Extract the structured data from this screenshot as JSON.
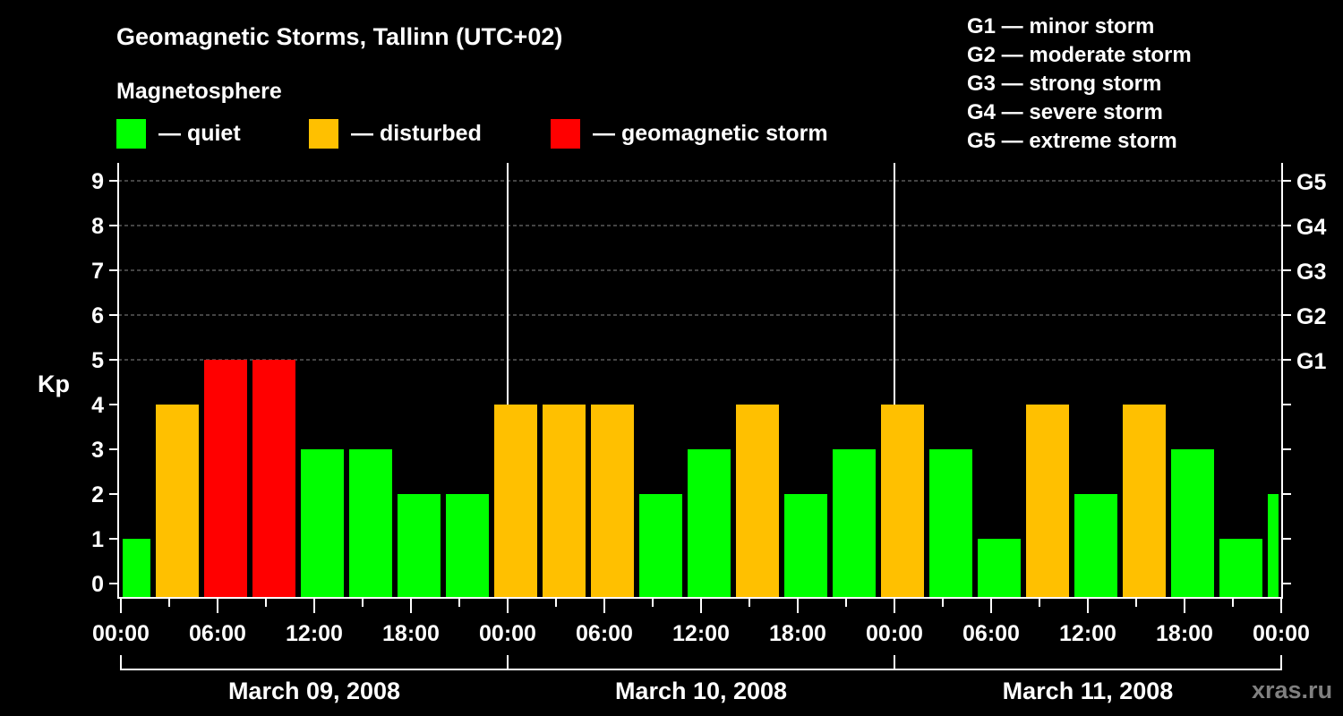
{
  "chart_data": {
    "type": "bar",
    "title": "Geomagnetic Storms, Tallinn (UTC+02)",
    "legend_title": "Magnetosphere",
    "legend": [
      {
        "label": "— quiet",
        "color": "#00ff00"
      },
      {
        "label": "— disturbed",
        "color": "#ffc000"
      },
      {
        "label": "— geomagnetic storm",
        "color": "#ff0000"
      }
    ],
    "storm_scale": [
      "G1 — minor storm",
      "G2 — moderate storm",
      "G3 — strong storm",
      "G4 — severe storm",
      "G5 — extreme storm"
    ],
    "ylabel": "Kp",
    "ylim": [
      0,
      9
    ],
    "yticks": [
      "0",
      "1",
      "2",
      "3",
      "4",
      "5",
      "6",
      "7",
      "8",
      "9"
    ],
    "right_ticks": [
      {
        "kp": 5,
        "label": "G1"
      },
      {
        "kp": 6,
        "label": "G2"
      },
      {
        "kp": 7,
        "label": "G3"
      },
      {
        "kp": 8,
        "label": "G4"
      },
      {
        "kp": 9,
        "label": "G5"
      }
    ],
    "xlim_hours": [
      0,
      72
    ],
    "bin_hours": 3,
    "first_bin_start_hour_local": -1,
    "xtick_labels": [
      "00:00",
      "06:00",
      "12:00",
      "18:00",
      "00:00",
      "06:00",
      "12:00",
      "18:00",
      "00:00",
      "06:00",
      "12:00",
      "18:00",
      "00:00"
    ],
    "days": [
      "March 09, 2008",
      "March 10, 2008",
      "March 11, 2008"
    ],
    "values": [
      1,
      4,
      5,
      5,
      3,
      3,
      2,
      2,
      4,
      4,
      4,
      2,
      3,
      4,
      2,
      3,
      4,
      3,
      1,
      4,
      2,
      4,
      3,
      1,
      2
    ],
    "watermark": "xras.ru"
  }
}
